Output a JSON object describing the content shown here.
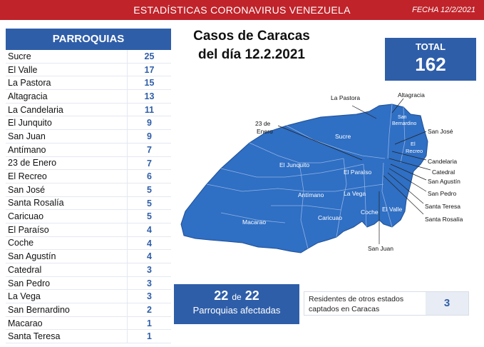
{
  "header": {
    "title": "ESTADÍSTICAS CORONAVIRUS VENEZUELA",
    "date": "FECHA 12/2/2021"
  },
  "table": {
    "heading": "PARROQUIAS",
    "rows": [
      {
        "name": "Sucre",
        "count": "25"
      },
      {
        "name": "El Valle",
        "count": "17"
      },
      {
        "name": "La Pastora",
        "count": "15"
      },
      {
        "name": "Altagracia",
        "count": "13"
      },
      {
        "name": "La Candelaria",
        "count": "11"
      },
      {
        "name": "El Junquito",
        "count": "9"
      },
      {
        "name": "San Juan",
        "count": "9"
      },
      {
        "name": "Antímano",
        "count": "7"
      },
      {
        "name": "23 de Enero",
        "count": "7"
      },
      {
        "name": "El Recreo",
        "count": "6"
      },
      {
        "name": "San José",
        "count": "5"
      },
      {
        "name": "Santa Rosalía",
        "count": "5"
      },
      {
        "name": "Caricuao",
        "count": "5"
      },
      {
        "name": "El Paraíso",
        "count": "4"
      },
      {
        "name": "Coche",
        "count": "4"
      },
      {
        "name": "San Agustín",
        "count": "4"
      },
      {
        "name": "Catedral",
        "count": "3"
      },
      {
        "name": "San Pedro",
        "count": "3"
      },
      {
        "name": "La Vega",
        "count": "3"
      },
      {
        "name": "San Bernardino",
        "count": "2"
      },
      {
        "name": "Macarao",
        "count": "1"
      },
      {
        "name": "Santa Teresa",
        "count": "1"
      }
    ]
  },
  "main_title": {
    "line1": "Casos de Caracas",
    "line2": "del día 12.2.2021"
  },
  "total": {
    "label": "TOTAL",
    "value": "162"
  },
  "map": {
    "fill_color": "#2f6fc4",
    "labels": {
      "la_pastora": "La Pastora",
      "altagracia": "Altagracia",
      "san_bernardino_1": "San",
      "san_bernardino_2": "Bernardino",
      "san_jose": "San José",
      "el_recreo_1": "El",
      "el_recreo_2": "Recreo",
      "candelaria": "Candelaria",
      "catedral": "Catedral",
      "san_agustin": "San Agustín",
      "san_pedro": "San Pedro",
      "santa_teresa": "Santa Teresa",
      "santa_rosalia": "Santa Rosalía",
      "enero_1": "23 de",
      "enero_2": "Enero",
      "sucre": "Sucre",
      "el_junquito": "El Junquito",
      "el_paraiso": "El Paraíso",
      "la_vega": "La Vega",
      "antimano": "Antímano",
      "caricuao": "Caricuao",
      "coche": "Coche",
      "el_valle": "El Valle",
      "macarao": "Macarao",
      "san_juan": "San Juan"
    }
  },
  "affected": {
    "num": "22",
    "of": "de",
    "den": "22",
    "label": "Parroquias afectadas"
  },
  "residents": {
    "label": "Residentes de otros estados captados en Caracas",
    "value": "3"
  }
}
